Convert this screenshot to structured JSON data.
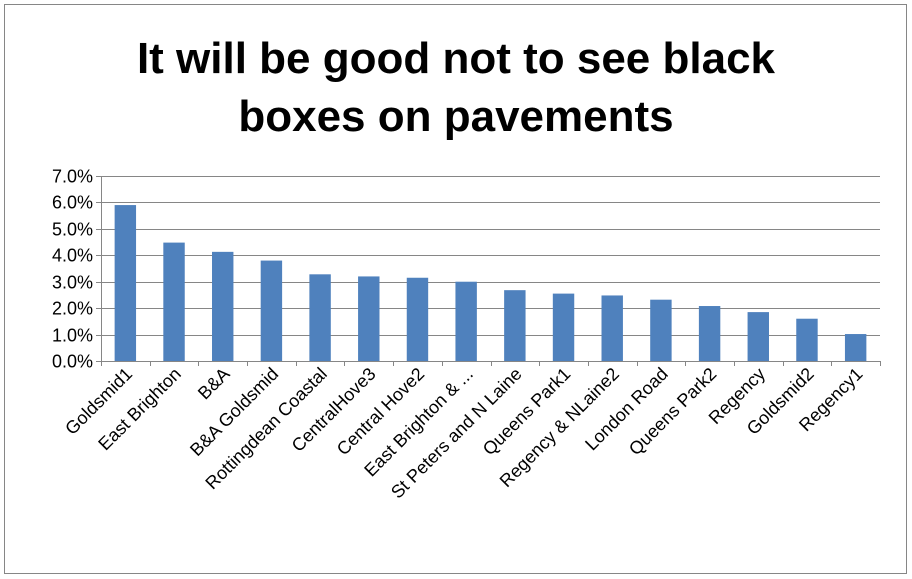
{
  "chart_data": {
    "type": "bar",
    "title_lines": [
      "It will be good not to see black",
      "boxes on pavements"
    ],
    "categories": [
      "Goldsmid1",
      "East Brighton",
      "B&A",
      "B&A Goldsmid",
      "Rottingdean Coastal",
      "CentralHove3",
      "Central Hove2",
      "East Brighton & ...",
      "St Peters and N Laine",
      "Queens Park1",
      "Regency & NLaine2",
      "London Road",
      "Queens Park2",
      "Regency",
      "Goldsmid2",
      "Regency1"
    ],
    "values": [
      0.059,
      0.0448,
      0.0413,
      0.038,
      0.0328,
      0.032,
      0.0315,
      0.03,
      0.0268,
      0.0255,
      0.0248,
      0.0232,
      0.0208,
      0.0185,
      0.016,
      0.0102
    ],
    "ylim": [
      0,
      0.07
    ],
    "yticks": [
      0,
      0.01,
      0.02,
      0.03,
      0.04,
      0.05,
      0.06,
      0.07
    ],
    "ytick_labels": [
      "0.0%",
      "1.0%",
      "2.0%",
      "3.0%",
      "4.0%",
      "5.0%",
      "6.0%",
      "7.0%"
    ],
    "bar_color": "#4f81bd",
    "grid": true,
    "legend": "none"
  }
}
